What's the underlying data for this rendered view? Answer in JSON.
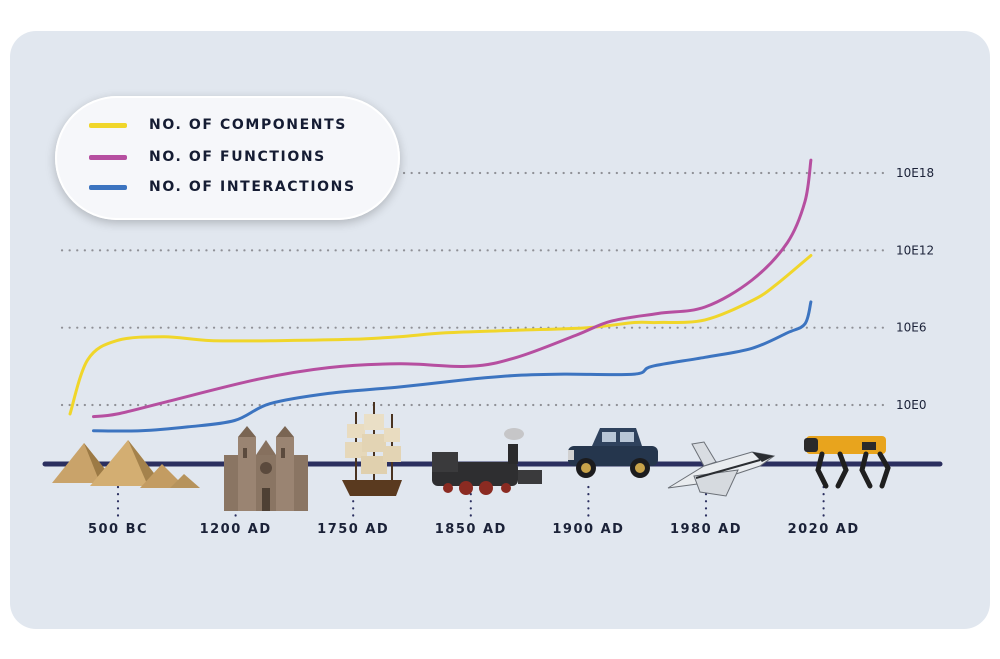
{
  "chart_data": {
    "type": "line",
    "title": "",
    "xlabel": "",
    "ylabel": "",
    "y_scale": "log",
    "y_ticks": [
      "10E0",
      "10E6",
      "10E12",
      "10E18"
    ],
    "y_tick_values": [
      0,
      6,
      12,
      18
    ],
    "x_categories": [
      "500 BC",
      "1200 AD",
      "1750 AD",
      "1850 AD",
      "1900 AD",
      "1980 AD",
      "2020 AD"
    ],
    "grid": "dotted horizontal at labeled y ticks",
    "legend_position": "top-left",
    "series": [
      {
        "name": "NO. OF COMPONENTS",
        "color": "#f0d62a",
        "points": [
          [
            0,
            -0.7
          ],
          [
            0.15,
            3.5
          ],
          [
            0.4,
            5.0
          ],
          [
            0.8,
            5.3
          ],
          [
            1.2,
            5.0
          ],
          [
            1.8,
            5.0
          ],
          [
            2.4,
            5.1
          ],
          [
            2.8,
            5.3
          ],
          [
            3.2,
            5.6
          ],
          [
            3.8,
            5.8
          ],
          [
            4.4,
            6.0
          ],
          [
            4.8,
            6.4
          ],
          [
            5.0,
            6.4
          ],
          [
            5.4,
            6.6
          ],
          [
            5.8,
            8.1
          ],
          [
            6.0,
            9.3
          ],
          [
            6.3,
            11.6
          ]
        ]
      },
      {
        "name": "NO. OF FUNCTIONS",
        "color": "#b64fa0",
        "points": [
          [
            0.2,
            -0.9
          ],
          [
            0.4,
            -0.7
          ],
          [
            0.8,
            0.2
          ],
          [
            1.6,
            2.0
          ],
          [
            2.2,
            2.9
          ],
          [
            2.8,
            3.2
          ],
          [
            3.4,
            3.0
          ],
          [
            3.8,
            3.7
          ],
          [
            4.3,
            5.4
          ],
          [
            4.6,
            6.5
          ],
          [
            5.0,
            7.1
          ],
          [
            5.4,
            7.6
          ],
          [
            5.8,
            9.7
          ],
          [
            6.1,
            12.6
          ],
          [
            6.25,
            15.8
          ],
          [
            6.3,
            19.0
          ]
        ]
      },
      {
        "name": "NO. OF INTERACTIONS",
        "color": "#3c74c0",
        "points": [
          [
            0.2,
            -2.0
          ],
          [
            0.6,
            -2.0
          ],
          [
            1.0,
            -1.7
          ],
          [
            1.4,
            -1.2
          ],
          [
            1.7,
            0.1
          ],
          [
            2.2,
            0.9
          ],
          [
            2.8,
            1.4
          ],
          [
            3.4,
            2.0
          ],
          [
            3.8,
            2.3
          ],
          [
            4.2,
            2.4
          ],
          [
            4.8,
            2.4
          ],
          [
            4.95,
            3.0
          ],
          [
            5.4,
            3.7
          ],
          [
            5.8,
            4.4
          ],
          [
            6.1,
            5.6
          ],
          [
            6.25,
            6.3
          ],
          [
            6.3,
            8.0
          ]
        ]
      }
    ]
  },
  "legend": {
    "items": [
      {
        "label": "NO. OF COMPONENTS",
        "color": "#f0d62a"
      },
      {
        "label": "NO. OF FUNCTIONS",
        "color": "#b64fa0"
      },
      {
        "label": "NO. OF INTERACTIONS",
        "color": "#3c74c0"
      }
    ]
  },
  "colors": {
    "background": "#e1e7ef",
    "timeline": "#2b2f5f",
    "gridline": "#8f9096"
  },
  "icons": [
    "pyramids-icon",
    "cathedral-icon",
    "sailing-ship-icon",
    "steam-locomotive-icon",
    "vintage-car-icon",
    "space-shuttle-icon",
    "robot-dog-icon"
  ]
}
